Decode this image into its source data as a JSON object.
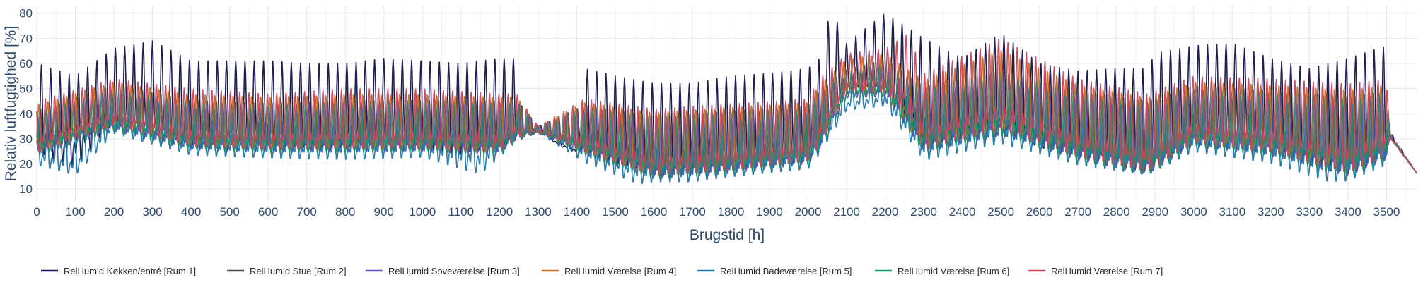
{
  "chart_data": {
    "type": "line",
    "title": "",
    "xlabel": "Brugstid [h]",
    "ylabel": "Relativ luftfugtighed [%]",
    "xlim": [
      0,
      3580
    ],
    "ylim": [
      5,
      83
    ],
    "xticks": [
      0,
      100,
      200,
      300,
      400,
      500,
      600,
      700,
      800,
      900,
      1000,
      1100,
      1200,
      1300,
      1400,
      1500,
      1600,
      1700,
      1800,
      1900,
      2000,
      2100,
      2200,
      2300,
      2400,
      2500,
      2600,
      2700,
      2800,
      2900,
      3000,
      3100,
      3200,
      3300,
      3400,
      3500
    ],
    "yticks": [
      10,
      20,
      30,
      40,
      50,
      60,
      70,
      80
    ],
    "grid": true,
    "legend_position": "bottom",
    "daily_cycle_hours": 24,
    "series": [
      {
        "name": "RelHumid Køkken/entré [Rum 1]",
        "color": "#14124a",
        "envelope": {
          "x": [
            0,
            100,
            200,
            300,
            400,
            500,
            600,
            700,
            800,
            900,
            1000,
            1100,
            1200,
            1245,
            1260,
            1300,
            1350,
            1400,
            1420,
            1500,
            1600,
            1700,
            1800,
            1900,
            2000,
            2030,
            2060,
            2100,
            2200,
            2300,
            2400,
            2500,
            2600,
            2700,
            2800,
            2880,
            2900,
            3000,
            3100,
            3200,
            3300,
            3400,
            3500,
            3510,
            3580
          ],
          "peak": [
            60,
            55,
            66,
            69,
            61,
            61,
            61,
            60,
            60,
            62,
            61,
            60,
            62,
            62,
            33,
            36,
            31,
            28,
            58,
            55,
            52,
            52,
            55,
            56,
            58,
            62,
            82,
            68,
            80,
            70,
            62,
            72,
            60,
            57,
            58,
            58,
            64,
            67,
            68,
            62,
            58,
            62,
            67,
            33,
            16
          ],
          "base": [
            20,
            14,
            33,
            32,
            23,
            27,
            23,
            22,
            22,
            27,
            22,
            19,
            23,
            27,
            32,
            33,
            27,
            24,
            21,
            16,
            12,
            12,
            17,
            19,
            20,
            24,
            38,
            48,
            47,
            22,
            26,
            30,
            22,
            20,
            19,
            14,
            20,
            26,
            30,
            23,
            14,
            14,
            20,
            30,
            16
          ]
        }
      },
      {
        "name": "RelHumid Stue [Rum 2]",
        "color": "#4a4a4a",
        "envelope": {
          "x": [
            0,
            200,
            400,
            600,
            800,
            1000,
            1200,
            1245,
            1300,
            1420,
            1600,
            1800,
            2000,
            2030,
            2100,
            2200,
            2300,
            2500,
            2700,
            2880,
            3000,
            3200,
            3400,
            3500,
            3510,
            3580
          ],
          "peak": [
            42,
            52,
            46,
            45,
            46,
            46,
            46,
            46,
            35,
            44,
            40,
            42,
            44,
            50,
            58,
            62,
            52,
            58,
            50,
            46,
            52,
            50,
            48,
            50,
            32,
            16
          ],
          "base": [
            22,
            32,
            24,
            23,
            23,
            23,
            22,
            28,
            32,
            22,
            12,
            14,
            18,
            24,
            46,
            46,
            22,
            29,
            19,
            13,
            25,
            21,
            12,
            19,
            30,
            16
          ]
        }
      },
      {
        "name": "RelHumid Soveværelse [Rum 3]",
        "color": "#5b4fb8",
        "envelope": {
          "x": [
            0,
            200,
            400,
            600,
            800,
            1000,
            1200,
            1245,
            1300,
            1420,
            1600,
            1800,
            2000,
            2030,
            2100,
            2200,
            2300,
            2500,
            2700,
            2880,
            3000,
            3200,
            3400,
            3500,
            3510,
            3580
          ],
          "peak": [
            40,
            50,
            44,
            44,
            45,
            45,
            45,
            45,
            35,
            43,
            38,
            40,
            42,
            48,
            56,
            60,
            50,
            56,
            48,
            45,
            50,
            48,
            46,
            48,
            32,
            16
          ],
          "base": [
            21,
            31,
            23,
            22,
            22,
            22,
            21,
            28,
            32,
            21,
            11,
            13,
            17,
            23,
            45,
            45,
            21,
            28,
            18,
            12,
            24,
            20,
            11,
            18,
            30,
            16
          ]
        }
      },
      {
        "name": "RelHumid Værelse [Rum 4]",
        "color": "#d06a22",
        "envelope": {
          "x": [
            0,
            200,
            400,
            600,
            800,
            1000,
            1200,
            1245,
            1300,
            1420,
            1600,
            1800,
            2000,
            2030,
            2100,
            2200,
            2300,
            2500,
            2700,
            2880,
            3000,
            3200,
            3400,
            3500,
            3510,
            3580
          ],
          "peak": [
            44,
            53,
            48,
            47,
            48,
            48,
            47,
            47,
            35,
            45,
            41,
            43,
            45,
            52,
            62,
            64,
            54,
            66,
            52,
            47,
            53,
            52,
            50,
            52,
            32,
            16
          ],
          "base": [
            22,
            33,
            24,
            23,
            23,
            23,
            22,
            28,
            32,
            22,
            12,
            14,
            18,
            24,
            47,
            46,
            22,
            29,
            19,
            13,
            25,
            21,
            12,
            19,
            30,
            16
          ]
        }
      },
      {
        "name": "RelHumid Badeværelse [Rum 5]",
        "color": "#1f77a8",
        "envelope": {
          "x": [
            0,
            100,
            200,
            400,
            600,
            800,
            1000,
            1150,
            1200,
            1245,
            1300,
            1420,
            1560,
            1600,
            1700,
            1800,
            2000,
            2030,
            2100,
            2200,
            2300,
            2500,
            2700,
            2880,
            3000,
            3200,
            3350,
            3400,
            3500,
            3510,
            3580
          ],
          "peak": [
            38,
            34,
            48,
            42,
            40,
            42,
            42,
            44,
            42,
            45,
            35,
            40,
            34,
            34,
            34,
            36,
            40,
            46,
            52,
            58,
            46,
            52,
            46,
            42,
            46,
            45,
            42,
            44,
            46,
            32,
            16
          ],
          "base": [
            17,
            13,
            30,
            21,
            20,
            19,
            20,
            12,
            20,
            27,
            32,
            18,
            9,
            10,
            10,
            12,
            15,
            21,
            40,
            41,
            18,
            25,
            16,
            12,
            22,
            17,
            9,
            9,
            16,
            30,
            16
          ]
        }
      },
      {
        "name": "RelHumid Værelse [Rum 6]",
        "color": "#14946a",
        "envelope": {
          "x": [
            0,
            200,
            400,
            600,
            800,
            1000,
            1200,
            1245,
            1300,
            1420,
            1600,
            1800,
            2000,
            2030,
            2100,
            2200,
            2300,
            2500,
            2700,
            2880,
            3000,
            3200,
            3400,
            3500,
            3510,
            3580
          ],
          "peak": [
            41,
            50,
            45,
            44,
            45,
            46,
            45,
            45,
            35,
            43,
            39,
            41,
            43,
            49,
            57,
            60,
            51,
            57,
            49,
            45,
            50,
            49,
            47,
            49,
            32,
            16
          ],
          "base": [
            21,
            31,
            23,
            22,
            22,
            22,
            21,
            28,
            32,
            21,
            11,
            13,
            17,
            23,
            45,
            45,
            21,
            28,
            18,
            12,
            24,
            20,
            11,
            18,
            30,
            16
          ]
        }
      },
      {
        "name": "RelHumid Værelse [Rum 7]",
        "color": "#c8455a",
        "envelope": {
          "x": [
            0,
            200,
            400,
            600,
            800,
            1000,
            1200,
            1245,
            1300,
            1420,
            1600,
            1800,
            2000,
            2030,
            2100,
            2200,
            2260,
            2300,
            2500,
            2700,
            2880,
            3000,
            3200,
            3400,
            3500,
            3510,
            3580
          ],
          "peak": [
            45,
            54,
            50,
            48,
            50,
            50,
            48,
            48,
            35,
            46,
            42,
            44,
            46,
            54,
            64,
            66,
            72,
            56,
            70,
            54,
            48,
            55,
            54,
            52,
            54,
            32,
            16
          ],
          "base": [
            22,
            33,
            24,
            23,
            23,
            23,
            22,
            28,
            32,
            22,
            12,
            14,
            18,
            24,
            47,
            46,
            36,
            22,
            29,
            19,
            13,
            25,
            21,
            12,
            19,
            30,
            16
          ]
        }
      }
    ]
  }
}
